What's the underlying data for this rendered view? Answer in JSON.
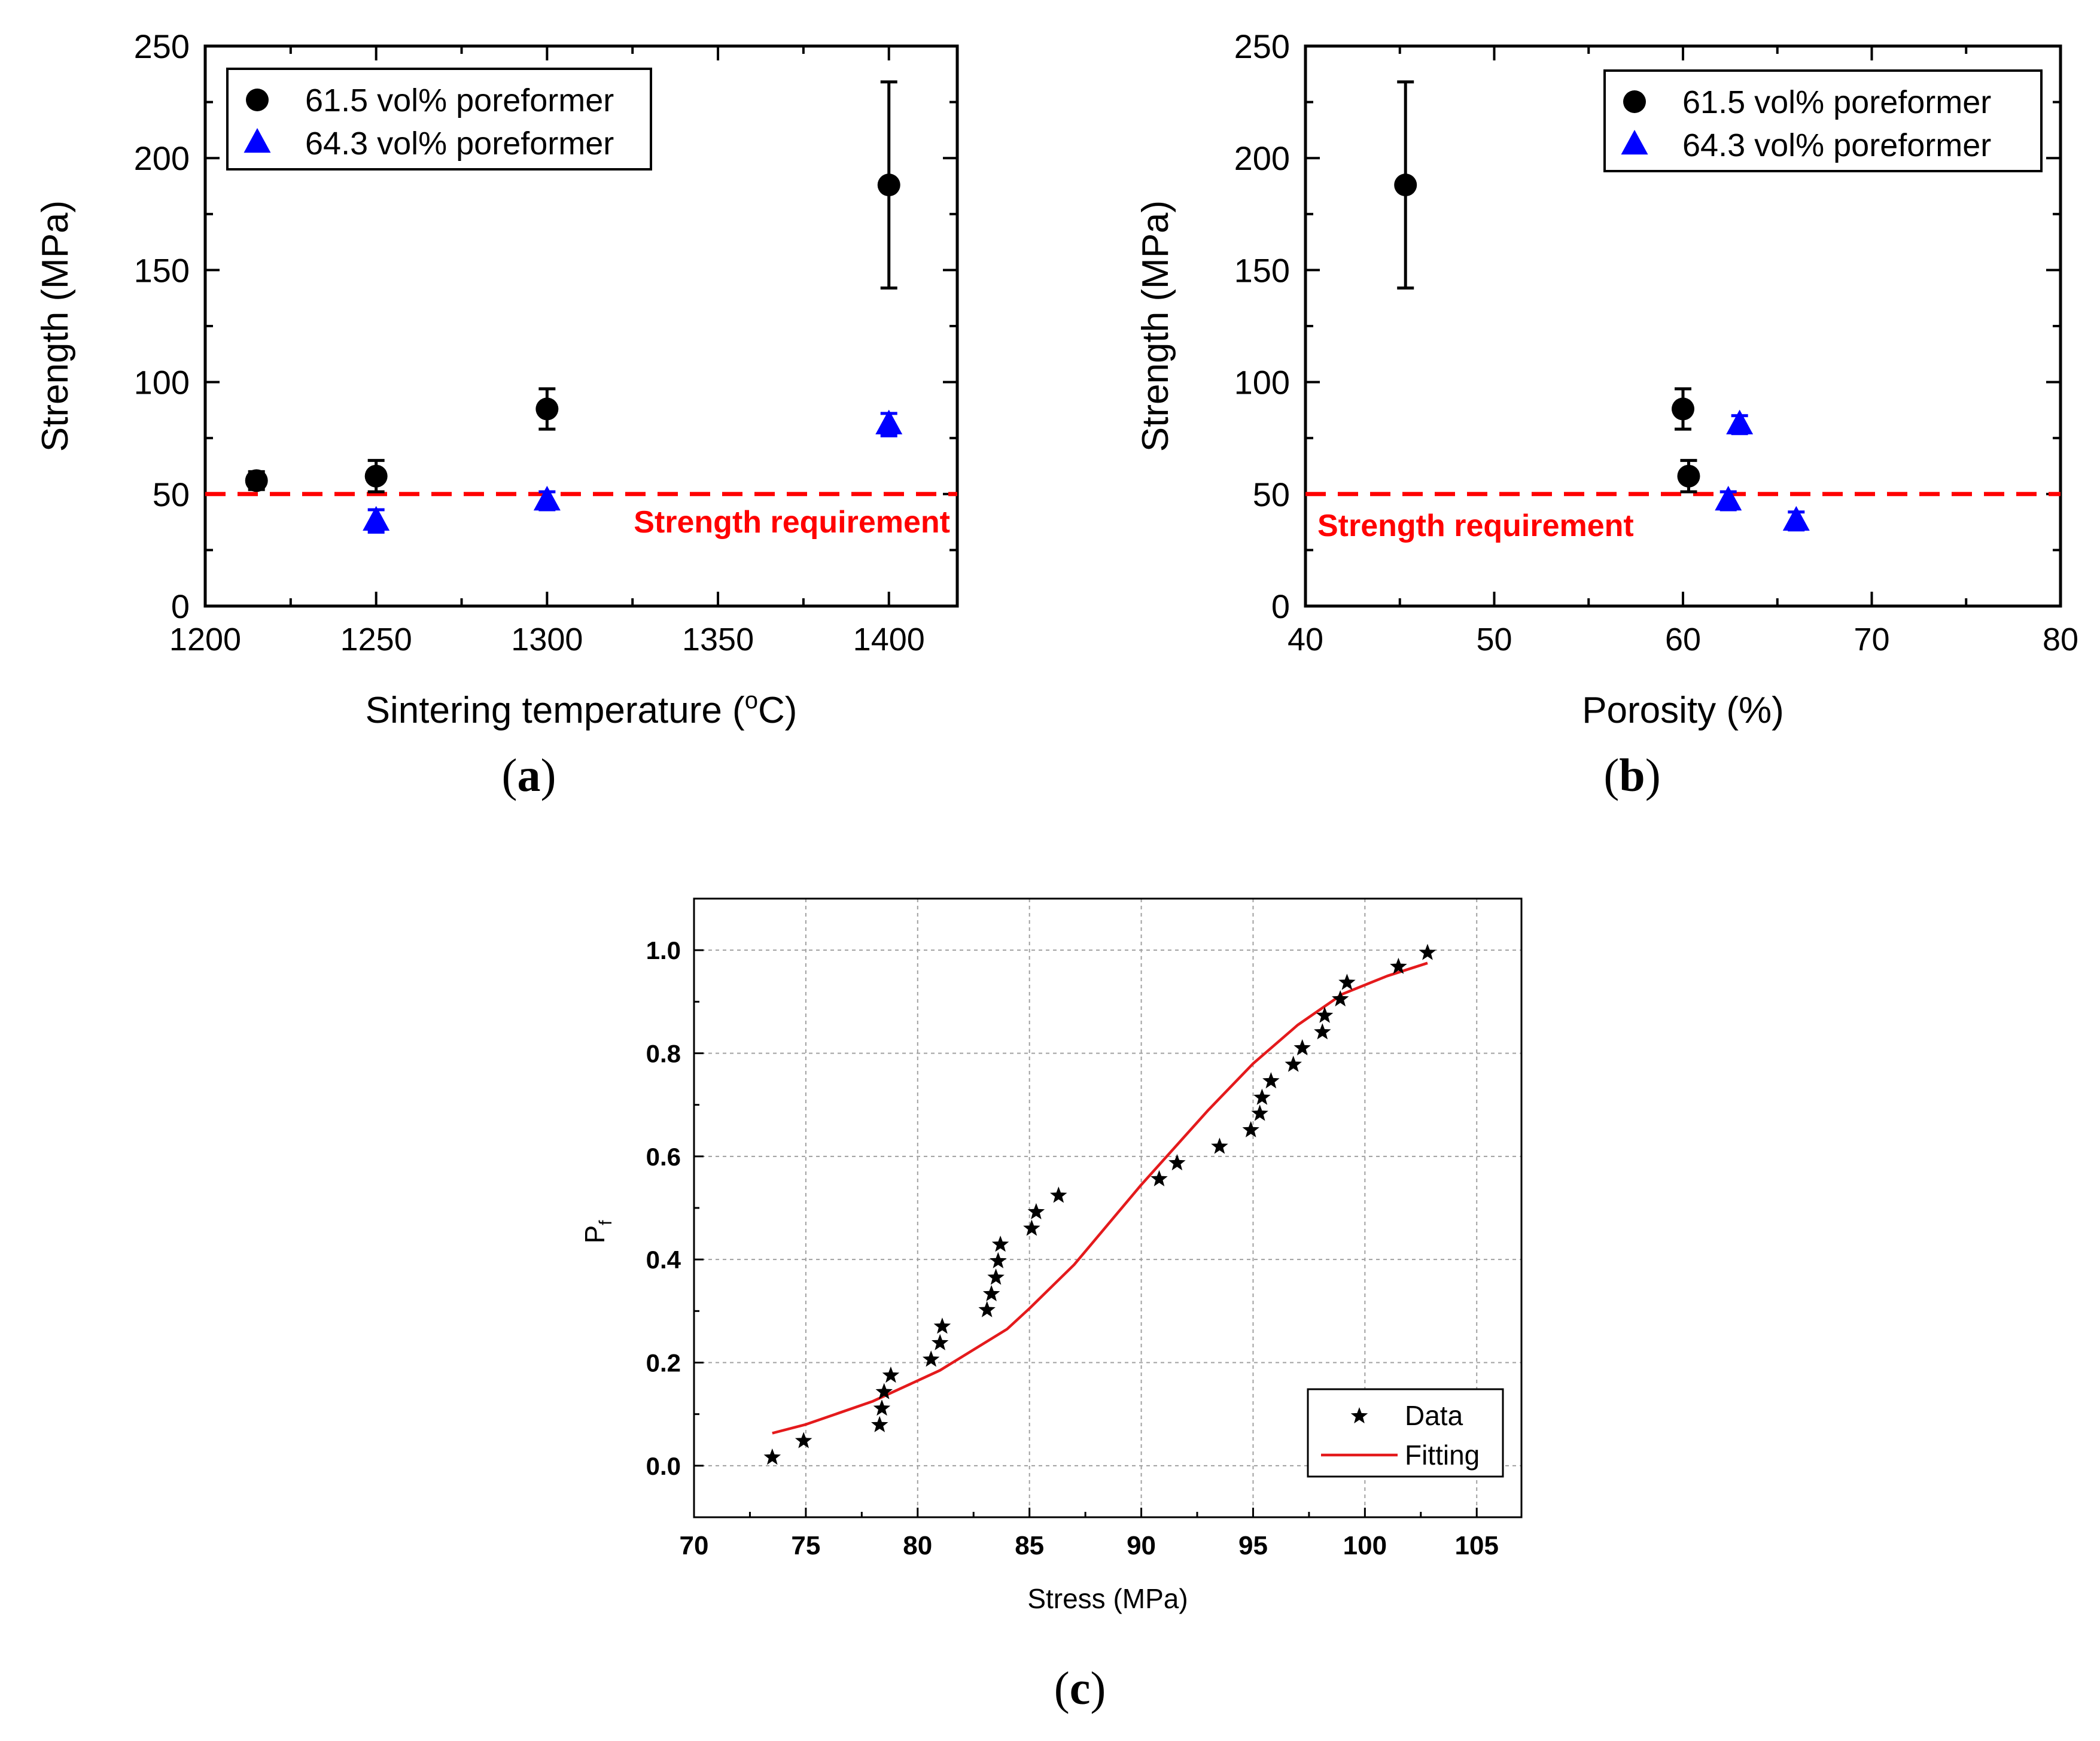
{
  "chart_data": [
    {
      "panel": "(a)",
      "type": "scatter",
      "title": "",
      "xlabel": "Sintering temperature (",
      "xlabel_sup": "o",
      "xlabel_end": "C)",
      "ylabel": "Strength (MPa)",
      "xlim": [
        1200,
        1420
      ],
      "ylim": [
        0,
        250
      ],
      "xticks": [
        1200,
        1250,
        1300,
        1350,
        1400
      ],
      "yticks": [
        0,
        50,
        100,
        150,
        200,
        250
      ],
      "series": [
        {
          "name": "61.5 vol% poreformer",
          "marker": "circle",
          "color": "#000000",
          "x": [
            1215,
            1250,
            1300,
            1400
          ],
          "y": [
            56,
            58,
            88,
            188
          ],
          "err": [
            4,
            7,
            9,
            46
          ]
        },
        {
          "name": "64.3 vol% poreformer",
          "marker": "triangle",
          "color": "#0000ff",
          "x": [
            1250,
            1300,
            1400
          ],
          "y": [
            38,
            47,
            81
          ],
          "err": [
            5,
            4,
            5
          ]
        }
      ],
      "reference_line": {
        "value": 50,
        "label": "Strength requirement",
        "color": "#ff0000"
      },
      "legend_position": "top-left"
    },
    {
      "panel": "(b)",
      "type": "scatter",
      "title": "",
      "xlabel": "Porosity (%)",
      "ylabel": "Strength (MPa)",
      "xlim": [
        40,
        80
      ],
      "ylim": [
        0,
        250
      ],
      "xticks": [
        40,
        50,
        60,
        70,
        80
      ],
      "yticks": [
        0,
        50,
        100,
        150,
        200,
        250
      ],
      "series": [
        {
          "name": "61.5 vol% poreformer",
          "marker": "circle",
          "color": "#000000",
          "x": [
            45.3,
            60.0,
            60.3
          ],
          "y": [
            188,
            88,
            58
          ],
          "err": [
            46,
            9,
            7
          ]
        },
        {
          "name": "64.3 vol% poreformer",
          "marker": "triangle",
          "color": "#0000ff",
          "x": [
            62.4,
            63.0,
            66.0
          ],
          "y": [
            47,
            81,
            38
          ],
          "err": [
            4,
            4,
            4
          ]
        }
      ],
      "reference_line": {
        "value": 50,
        "label": "Strength requirement",
        "color": "#ff0000"
      },
      "legend_position": "top-right"
    },
    {
      "panel": "(c)",
      "type": "scatter",
      "title": "",
      "xlabel": "Stress (MPa)",
      "ylabel": "P",
      "ylabel_sub": "f",
      "xlim": [
        70,
        107
      ],
      "ylim": [
        -0.1,
        1.1
      ],
      "xticks": [
        70,
        75,
        80,
        85,
        90,
        95,
        100,
        105
      ],
      "yticks": [
        0.0,
        0.2,
        0.4,
        0.6,
        0.8,
        1.0
      ],
      "ytick_labels": [
        "0.0",
        "0.2",
        "0.4",
        "0.6",
        "0.8",
        "1.0"
      ],
      "grid": true,
      "series": [
        {
          "name": "Data",
          "marker": "star",
          "color": "#000000",
          "x": [
            73.5,
            74.9,
            78.3,
            78.4,
            78.5,
            78.8,
            80.6,
            81.0,
            81.1,
            83.1,
            83.3,
            83.5,
            83.6,
            83.7,
            85.1,
            85.3,
            86.3,
            90.8,
            91.6,
            93.5,
            94.9,
            95.3,
            95.4,
            95.8,
            96.8,
            97.2,
            98.1,
            98.2,
            98.9,
            99.2,
            101.5,
            102.8
          ],
          "y": [
            0.016,
            0.048,
            0.079,
            0.111,
            0.143,
            0.175,
            0.206,
            0.238,
            0.27,
            0.302,
            0.333,
            0.365,
            0.397,
            0.429,
            0.46,
            0.492,
            0.524,
            0.556,
            0.587,
            0.619,
            0.651,
            0.683,
            0.714,
            0.746,
            0.778,
            0.81,
            0.841,
            0.873,
            0.905,
            0.937,
            0.968,
            0.995
          ]
        },
        {
          "name": "Fitting",
          "line": true,
          "color": "#e41a1c",
          "x": [
            73.5,
            75,
            78,
            80,
            81,
            84,
            85,
            87,
            90,
            93,
            95,
            97,
            99,
            101,
            102.8
          ],
          "y": [
            0.063,
            0.08,
            0.125,
            0.165,
            0.185,
            0.265,
            0.305,
            0.39,
            0.545,
            0.69,
            0.78,
            0.855,
            0.915,
            0.95,
            0.975
          ]
        }
      ],
      "legend_position": "bottom-right"
    }
  ],
  "captions": {
    "a": "a",
    "b": "b",
    "c": "c"
  }
}
